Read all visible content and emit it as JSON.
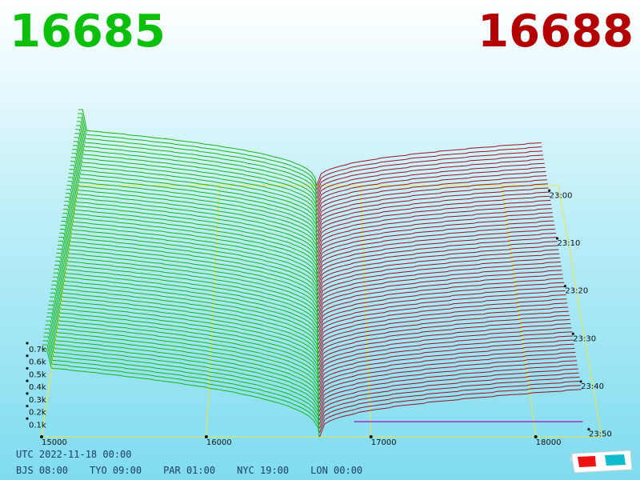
{
  "prices": {
    "bid": "16685",
    "ask": "16688"
  },
  "colors": {
    "bid": "#0bbf0b",
    "ask": "#b20000",
    "bid_line": "#16b516",
    "ask_line": "#9e1020",
    "grid": "#f2e24a",
    "base": "#a030c0"
  },
  "chart_data": {
    "type": "3d-depth",
    "x_axis": {
      "ticks": [
        15000,
        16000,
        17000,
        18000
      ],
      "tick_labels": [
        "15000",
        "16000",
        "17000",
        "18000"
      ]
    },
    "y_axis": {
      "ticks": [
        100,
        200,
        300,
        400,
        500,
        600,
        700
      ],
      "tick_labels": [
        "0.1k",
        "0.2k",
        "0.3k",
        "0.4k",
        "0.5k",
        "0.6k",
        "0.7k"
      ]
    },
    "time_axis": {
      "tick_labels": [
        "23:00",
        "23:10",
        "23:20",
        "23:30",
        "23:40",
        "23:50"
      ]
    },
    "series": [
      {
        "side": "bid",
        "price_range": [
          15000,
          16685
        ],
        "depth_max": 700
      },
      {
        "side": "ask",
        "price_range": [
          16688,
          18300
        ],
        "depth_max": 450
      }
    ]
  },
  "footer": {
    "utc": "UTC 2022-11-18 00:00",
    "zones": [
      "BJS 08:00",
      "TYO 09:00",
      "PAR 01:00",
      "NYC 19:00",
      "LON 00:00"
    ]
  }
}
